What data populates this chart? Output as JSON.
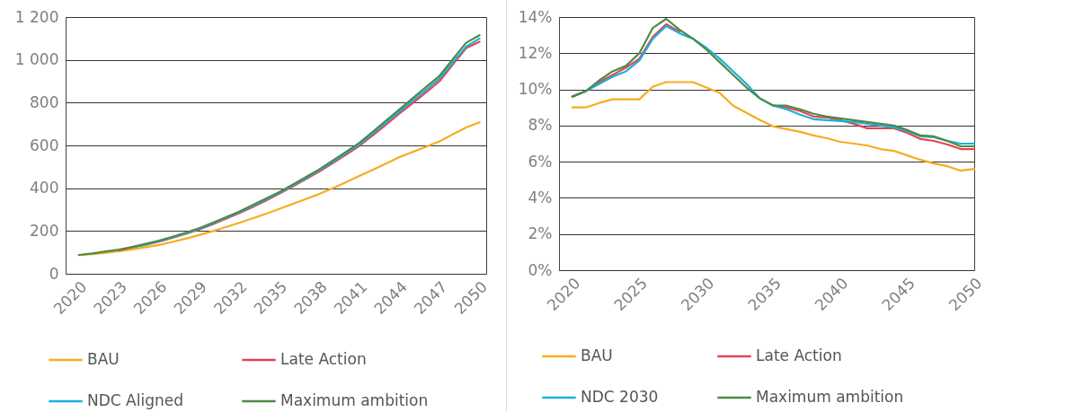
{
  "chart_data": [
    {
      "type": "line",
      "legend": "bottom",
      "grid": "y",
      "xlim": [
        2019,
        2050.5
      ],
      "xticks": [
        2020,
        2023,
        2026,
        2029,
        2032,
        2035,
        2038,
        2041,
        2044,
        2047,
        2050
      ],
      "ylim": [
        0,
        1200
      ],
      "yticks": [
        0,
        200,
        400,
        600,
        800,
        {
          "value": 1000,
          "label": "1 000"
        },
        {
          "value": 1200,
          "label": "1 200"
        }
      ],
      "x": [
        2020,
        2021,
        2022,
        2023,
        2024,
        2025,
        2026,
        2027,
        2028,
        2029,
        2030,
        2031,
        2032,
        2033,
        2034,
        2035,
        2036,
        2037,
        2038,
        2039,
        2040,
        2041,
        2042,
        2043,
        2044,
        2045,
        2046,
        2047,
        2048,
        2049,
        2050
      ],
      "series": [
        {
          "name": "BAU",
          "color": "#f5ad1f",
          "values": [
            87,
            92,
            98,
            105,
            114,
            124,
            135,
            149,
            164,
            181,
            199,
            218,
            238,
            259,
            280,
            303,
            326,
            349,
            373,
            400,
            428,
            457,
            486,
            515,
            545,
            570,
            594,
            619,
            652,
            684,
            708
          ]
        },
        {
          "name": "Late Action",
          "color": "#e8434f",
          "values": [
            null,
            null,
            null,
            110,
            123,
            136,
            150,
            168,
            187,
            207,
            231,
            257,
            283,
            312,
            342,
            374,
            408,
            442,
            478,
            517,
            557,
            598,
            647,
            697,
            749,
            798,
            848,
            900,
            978,
            1055,
            1085
          ]
        },
        {
          "name": "NDC Aligned",
          "color": "#1ab0e0",
          "values": [
            null,
            null,
            null,
            null,
            124,
            137,
            152,
            170,
            189,
            210,
            235,
            261,
            287,
            317,
            347,
            378,
            413,
            447,
            483,
            523,
            564,
            605,
            655,
            706,
            758,
            809,
            860,
            912,
            988,
            1062,
            1100
          ]
        },
        {
          "name": "Maximum ambition",
          "color": "#4e8a47",
          "values": [
            88,
            95,
            104,
            113,
            126,
            140,
            155,
            173,
            192,
            213,
            238,
            264,
            291,
            321,
            351,
            382,
            417,
            452,
            488,
            529,
            570,
            612,
            664,
            716,
            768,
            821,
            873,
            925,
            1003,
            1080,
            1115
          ]
        }
      ]
    },
    {
      "type": "line",
      "legend": "bottom",
      "grid": "y",
      "xlim": [
        2019,
        2050
      ],
      "xticks": [
        2020,
        2025,
        2030,
        2035,
        2040,
        2045,
        2050
      ],
      "ylim": [
        0,
        14
      ],
      "yticks": [
        {
          "value": 0,
          "label": "0%"
        },
        {
          "value": 2,
          "label": "2%"
        },
        {
          "value": 4,
          "label": "4%"
        },
        {
          "value": 6,
          "label": "6%"
        },
        {
          "value": 8,
          "label": "8%"
        },
        {
          "value": 10,
          "label": "10%"
        },
        {
          "value": 12,
          "label": "12%"
        },
        {
          "value": 14,
          "label": "14%"
        }
      ],
      "x": [
        2020,
        2021,
        2022,
        2023,
        2024,
        2025,
        2026,
        2027,
        2028,
        2029,
        2030,
        2031,
        2032,
        2033,
        2034,
        2035,
        2036,
        2037,
        2038,
        2039,
        2040,
        2041,
        2042,
        2043,
        2044,
        2045,
        2046,
        2047,
        2048,
        2049,
        2050
      ],
      "series": [
        {
          "name": "BAU",
          "color": "#f5ad1f",
          "values": [
            9.0,
            9.0,
            9.25,
            9.45,
            9.45,
            9.45,
            10.15,
            10.4,
            10.4,
            10.4,
            10.1,
            9.8,
            9.1,
            8.7,
            8.3,
            7.95,
            7.8,
            7.65,
            7.45,
            7.3,
            7.1,
            7.0,
            6.9,
            6.7,
            6.6,
            6.35,
            6.1,
            5.9,
            5.75,
            5.5,
            5.6
          ]
        },
        {
          "name": "Late Action",
          "color": "#e8434f",
          "values": [
            9.6,
            9.9,
            10.4,
            10.8,
            11.2,
            11.7,
            12.9,
            13.6,
            13.2,
            null,
            null,
            null,
            null,
            null,
            null,
            9.1,
            9.0,
            8.8,
            8.5,
            8.45,
            8.3,
            8.1,
            7.85,
            7.85,
            7.85,
            7.6,
            7.25,
            7.15,
            6.95,
            6.7,
            6.7
          ]
        },
        {
          "name": "NDC 2030",
          "color": "#1ab0e0",
          "values": [
            9.6,
            9.9,
            10.3,
            10.7,
            11.0,
            11.6,
            12.8,
            13.5,
            13.1,
            12.8,
            12.3,
            11.7,
            11.0,
            10.3,
            9.5,
            9.1,
            8.9,
            8.6,
            8.35,
            8.3,
            8.25,
            8.2,
            8.1,
            8.0,
            7.9,
            7.7,
            7.4,
            7.35,
            7.15,
            7.0,
            7.0
          ]
        },
        {
          "name": "Maximum ambition",
          "color": "#4e8a47",
          "values": [
            9.6,
            9.9,
            10.5,
            11.0,
            11.3,
            12.0,
            13.4,
            13.9,
            13.3,
            12.8,
            12.2,
            11.5,
            10.8,
            10.1,
            9.5,
            9.1,
            9.1,
            8.9,
            8.65,
            8.5,
            8.4,
            8.3,
            8.2,
            8.1,
            8.0,
            7.75,
            7.45,
            7.4,
            7.15,
            6.85,
            6.85
          ]
        }
      ]
    }
  ]
}
